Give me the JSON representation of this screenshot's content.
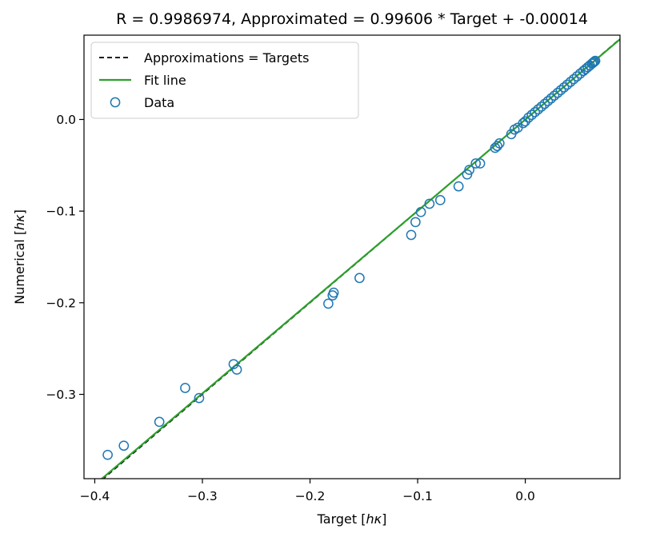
{
  "chart_data": {
    "type": "scatter",
    "title": "R = 0.9986974, Approximated = 0.99606 * Target + -0.00014",
    "xlabel": "Target [ℎκ]",
    "ylabel": "Numerical [ℎκ]",
    "xlabel_parts": {
      "prefix": "Target [",
      "unit": "hκ",
      "suffix": "]"
    },
    "ylabel_parts": {
      "prefix": "Numerical [",
      "unit": "hκ",
      "suffix": "]"
    },
    "xlim": [
      -0.41,
      0.088
    ],
    "ylim": [
      -0.392,
      0.092
    ],
    "xticks": [
      {
        "value": -0.4,
        "label": "−0.4"
      },
      {
        "value": -0.3,
        "label": "−0.3"
      },
      {
        "value": -0.2,
        "label": "−0.2"
      },
      {
        "value": -0.1,
        "label": "−0.1"
      },
      {
        "value": 0.0,
        "label": "0.0"
      }
    ],
    "yticks": [
      {
        "value": 0.0,
        "label": "0.0"
      },
      {
        "value": -0.1,
        "label": "−0.1"
      },
      {
        "value": -0.2,
        "label": "−0.2"
      },
      {
        "value": -0.3,
        "label": "−0.3"
      }
    ],
    "grid": false,
    "legend_position": "top-left",
    "legend": [
      {
        "label": "Approximations = Targets",
        "kind": "dashed-line",
        "color": "#000000"
      },
      {
        "label": "Fit line",
        "kind": "line",
        "color": "#2ca02c"
      },
      {
        "label": "Data",
        "kind": "marker",
        "color": "#1f77b4"
      }
    ],
    "series": [
      {
        "name": "Approximations = Targets",
        "kind": "line",
        "slope": 1.0,
        "intercept": 0.0,
        "color": "#000000"
      },
      {
        "name": "Fit line",
        "kind": "line",
        "slope": 0.99606,
        "intercept": -0.00014,
        "color": "#2ca02c"
      },
      {
        "name": "Data",
        "kind": "scatter",
        "color": "#1f77b4",
        "points": [
          [
            -0.388,
            -0.366
          ],
          [
            -0.373,
            -0.356
          ],
          [
            -0.34,
            -0.33
          ],
          [
            -0.316,
            -0.293
          ],
          [
            -0.303,
            -0.304
          ],
          [
            -0.271,
            -0.267
          ],
          [
            -0.268,
            -0.273
          ],
          [
            -0.183,
            -0.201
          ],
          [
            -0.179,
            -0.192
          ],
          [
            -0.178,
            -0.189
          ],
          [
            -0.154,
            -0.173
          ],
          [
            -0.106,
            -0.126
          ],
          [
            -0.102,
            -0.112
          ],
          [
            -0.097,
            -0.101
          ],
          [
            -0.089,
            -0.092
          ],
          [
            -0.079,
            -0.088
          ],
          [
            -0.062,
            -0.073
          ],
          [
            -0.054,
            -0.06
          ],
          [
            -0.052,
            -0.055
          ],
          [
            -0.046,
            -0.048
          ],
          [
            -0.042,
            -0.048
          ],
          [
            -0.028,
            -0.031
          ],
          [
            -0.026,
            -0.029
          ],
          [
            -0.024,
            -0.026
          ],
          [
            -0.013,
            -0.016
          ],
          [
            -0.01,
            -0.011
          ],
          [
            -0.007,
            -0.009
          ],
          [
            -0.002,
            -0.004
          ],
          [
            0.0,
            -0.002
          ],
          [
            0.003,
            0.002
          ],
          [
            0.006,
            0.005
          ],
          [
            0.009,
            0.008
          ],
          [
            0.012,
            0.011
          ],
          [
            0.015,
            0.014
          ],
          [
            0.018,
            0.017
          ],
          [
            0.021,
            0.02
          ],
          [
            0.024,
            0.023
          ],
          [
            0.027,
            0.026
          ],
          [
            0.03,
            0.029
          ],
          [
            0.033,
            0.032
          ],
          [
            0.036,
            0.035
          ],
          [
            0.039,
            0.038
          ],
          [
            0.042,
            0.041
          ],
          [
            0.045,
            0.044
          ],
          [
            0.048,
            0.047
          ],
          [
            0.051,
            0.05
          ],
          [
            0.054,
            0.053
          ],
          [
            0.056,
            0.055
          ],
          [
            0.058,
            0.057
          ],
          [
            0.06,
            0.059
          ],
          [
            0.062,
            0.061
          ],
          [
            0.063,
            0.062
          ],
          [
            0.064,
            0.063
          ],
          [
            0.065,
            0.064
          ]
        ]
      }
    ]
  }
}
